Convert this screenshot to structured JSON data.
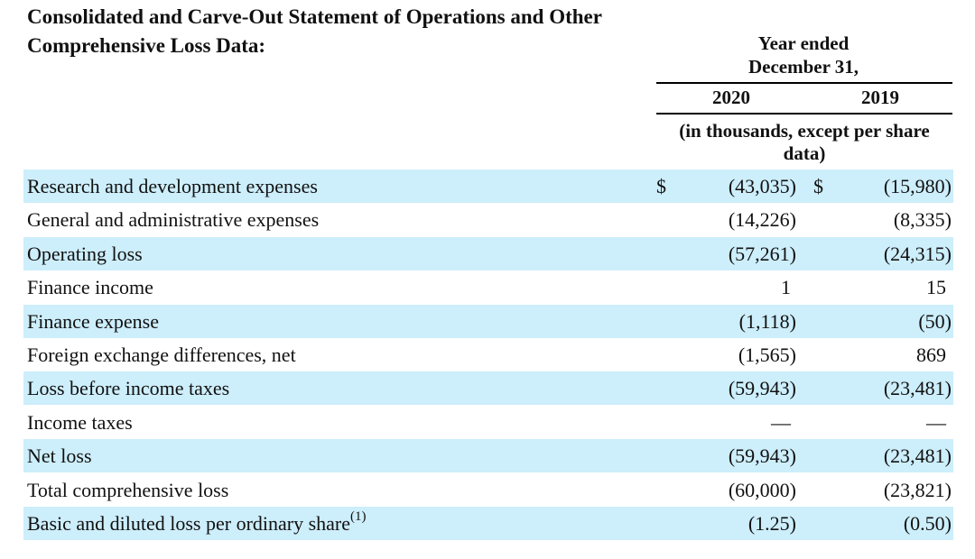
{
  "title": "Consolidated and Carve-Out Statement of Operations and Other Comprehensive Loss Data:",
  "header": {
    "year_ended": "Year ended",
    "date": "December 31,",
    "years": [
      "2020",
      "2019"
    ],
    "units_line1": "(in thousands, except per share",
    "units_line2": "data)"
  },
  "currency_symbol": "$",
  "rows": [
    {
      "label": "Research and development expenses",
      "v2020": "(43,035)",
      "v2019": "(15,980)",
      "dollar": true
    },
    {
      "label": "General and administrative expenses",
      "v2020": "(14,226)",
      "v2019": "(8,335)"
    },
    {
      "label": "Operating loss",
      "v2020": "(57,261)",
      "v2019": "(24,315)"
    },
    {
      "label": "Finance income",
      "v2020": "1",
      "v2019": "15"
    },
    {
      "label": "Finance expense",
      "v2020": "(1,118)",
      "v2019": "(50)"
    },
    {
      "label": "Foreign exchange differences, net",
      "v2020": "(1,565)",
      "v2019": "869"
    },
    {
      "label": "Loss before income taxes",
      "v2020": "(59,943)",
      "v2019": "(23,481)"
    },
    {
      "label": "Income taxes",
      "v2020": "—",
      "v2019": "—"
    },
    {
      "label": "Net loss",
      "v2020": "(59,943)",
      "v2019": "(23,481)"
    },
    {
      "label": "Total comprehensive loss",
      "v2020": "(60,000)",
      "v2019": "(23,821)"
    },
    {
      "label": "Basic and diluted loss per ordinary share",
      "footnote": "(1)",
      "v2020": "(1.25)",
      "v2019": "(0.50)"
    }
  ],
  "colors": {
    "shade": "#cdeefb"
  }
}
